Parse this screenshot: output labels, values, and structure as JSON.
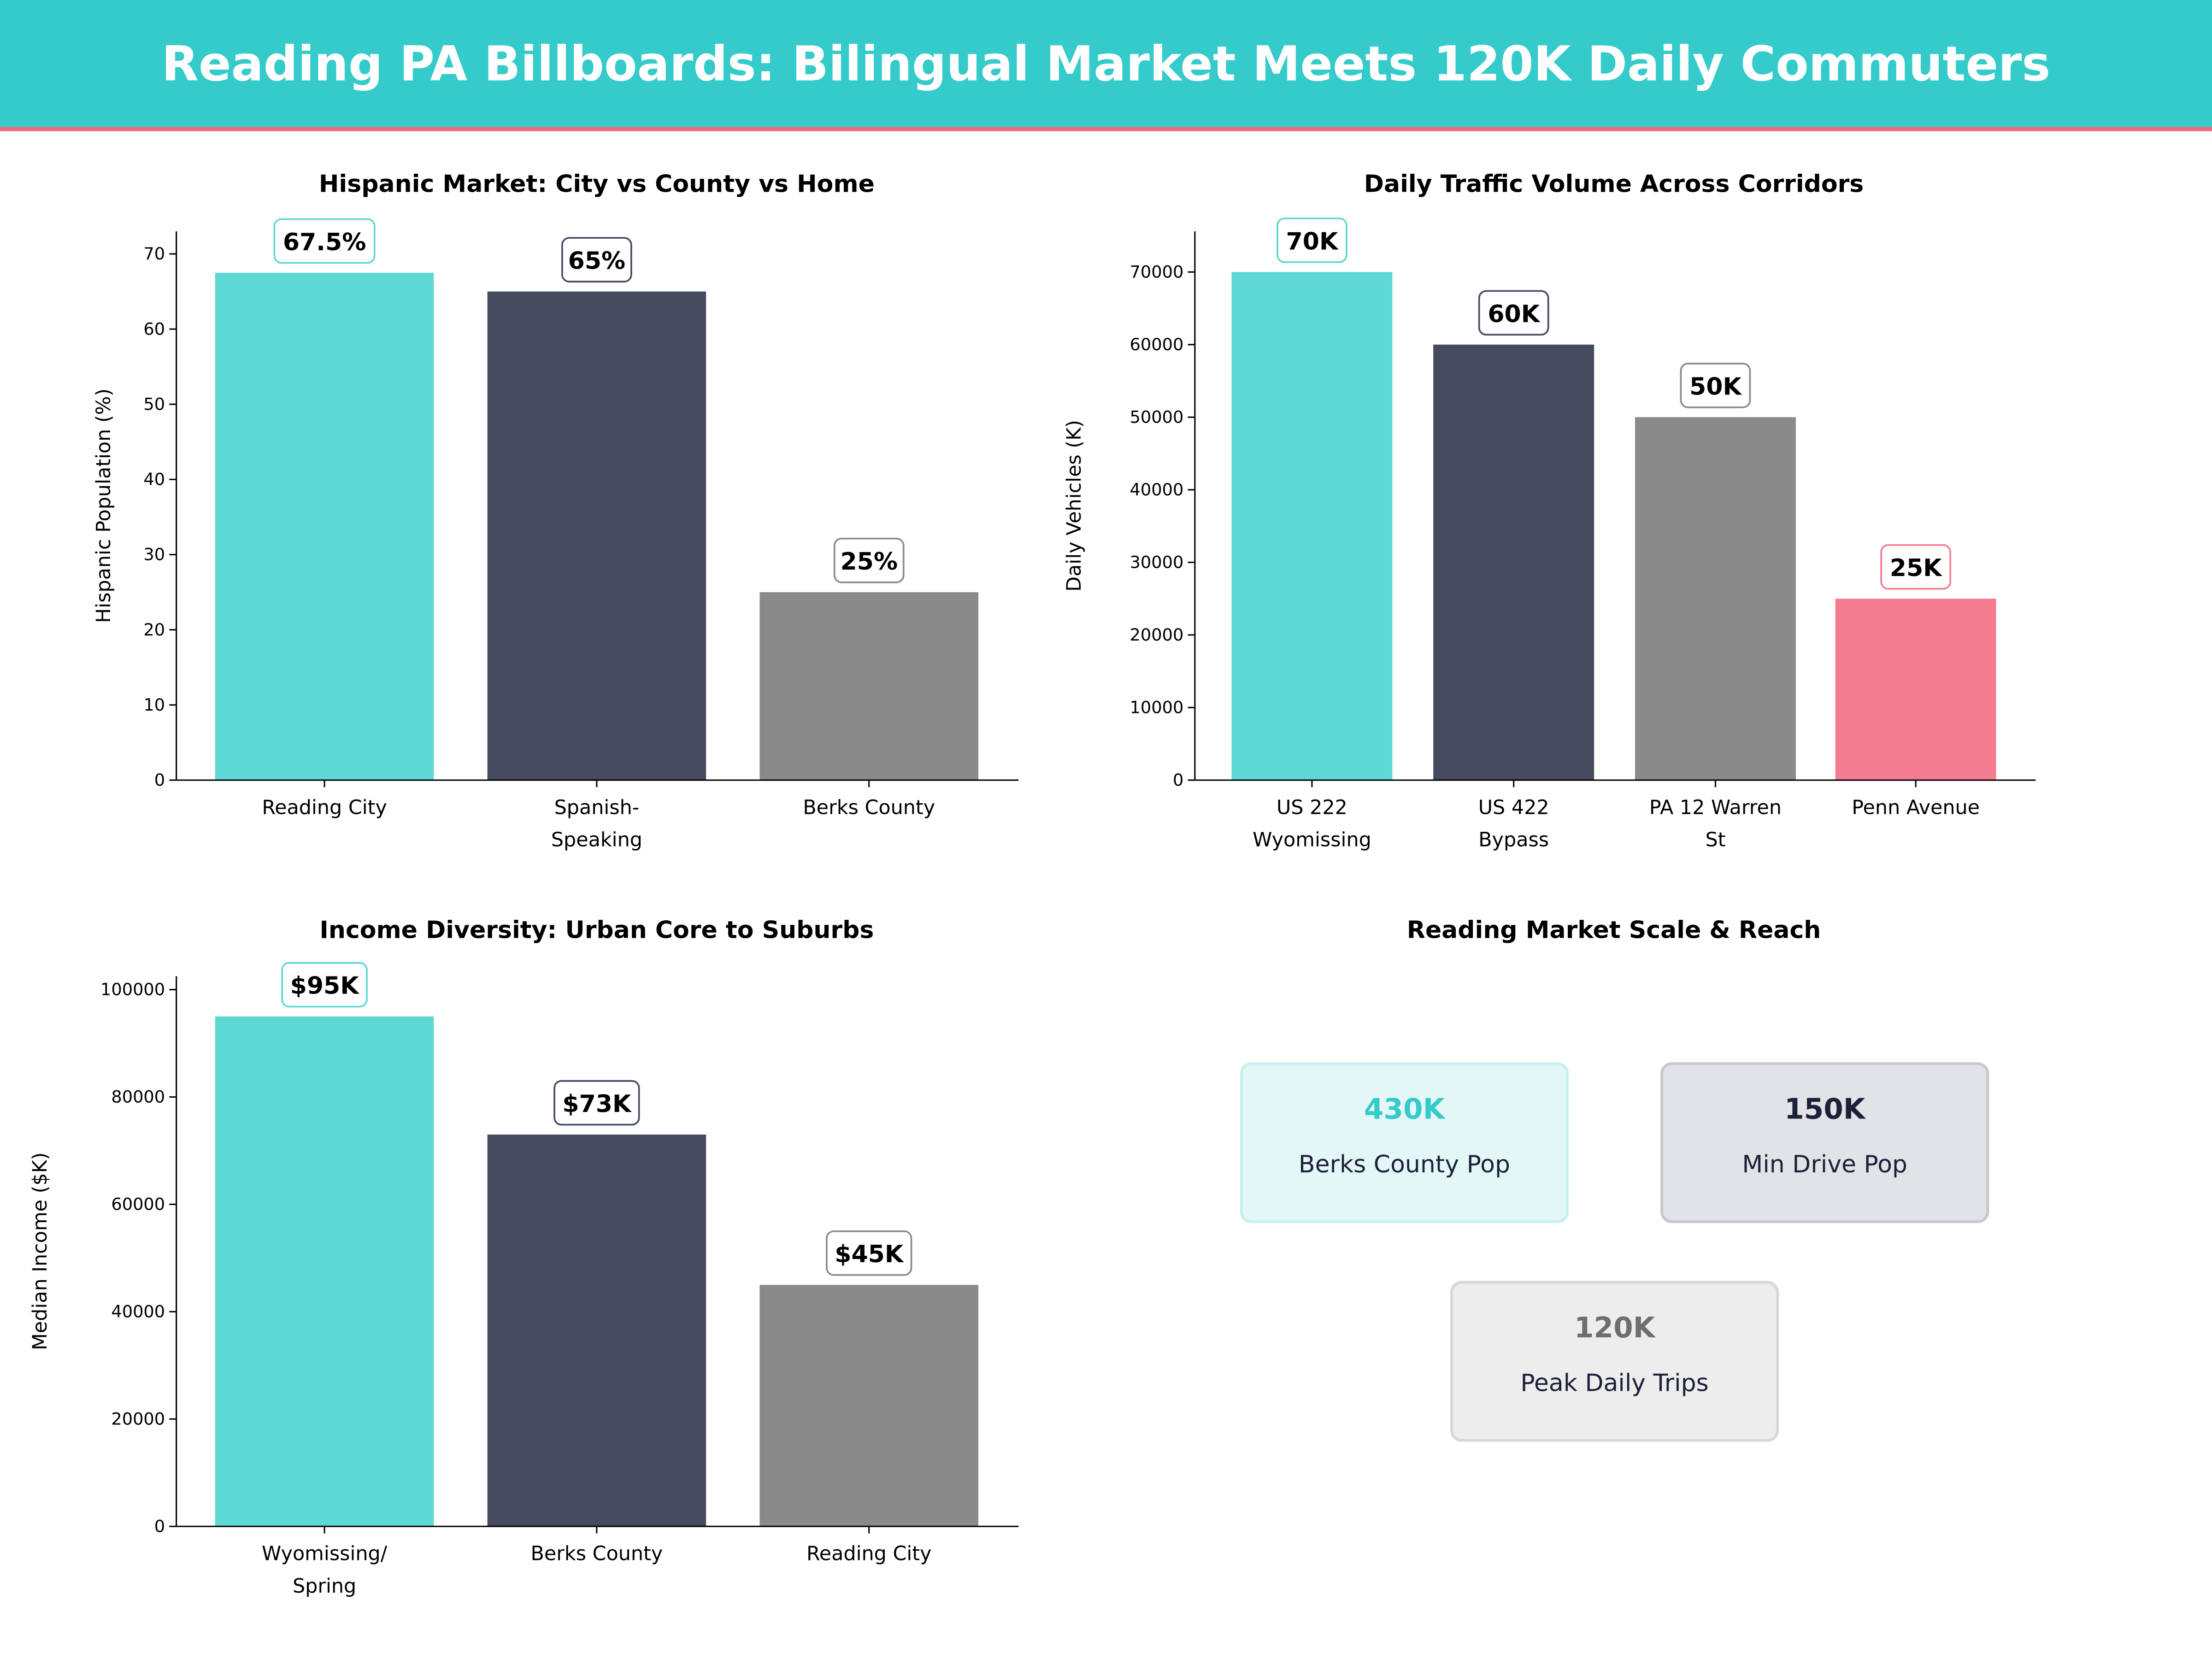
{
  "header": {
    "title": "Reading PA Billboards: Bilingual Market Meets 120K Daily Commuters",
    "bg_color": "#36CBCB",
    "accent_line_color": "#F06A7E"
  },
  "chart_data": [
    {
      "type": "bar",
      "title": "Hispanic Market: City vs County vs Home",
      "ylabel": "Hispanic Population (%)",
      "xlabel": "",
      "categories": [
        "Reading City",
        "Spanish-\nSpeaking",
        "Berks County"
      ],
      "values": [
        67.5,
        65,
        25
      ],
      "data_labels": [
        "67.5%",
        "65%",
        "25%"
      ],
      "colors": [
        "#5DD8D5",
        "#454A5F",
        "#8A8A8A"
      ],
      "ylim": [
        0,
        73
      ],
      "yticks": [
        0,
        10,
        20,
        30,
        40,
        50,
        60,
        70
      ],
      "grid": false
    },
    {
      "type": "bar",
      "title": "Daily Traffic Volume Across Corridors",
      "ylabel": "Daily Vehicles (K)",
      "xlabel": "",
      "categories": [
        "US 222\nWyomissing",
        "US 422\nBypass",
        "PA 12 Warren\nSt",
        "Penn Avenue"
      ],
      "values": [
        70000,
        60000,
        50000,
        25000
      ],
      "data_labels": [
        "70K",
        "60K",
        "50K",
        "25K"
      ],
      "colors": [
        "#5DD8D5",
        "#454A5F",
        "#8A8A8A",
        "#F47C90"
      ],
      "ylim": [
        0,
        75600
      ],
      "yticks": [
        0,
        10000,
        20000,
        30000,
        40000,
        50000,
        60000,
        70000
      ],
      "grid": false
    },
    {
      "type": "bar",
      "title": "Income Diversity: Urban Core to Suburbs",
      "ylabel": "Median Income ($K)",
      "xlabel": "",
      "categories": [
        "Wyomissing/\nSpring",
        "Berks County",
        "Reading City"
      ],
      "values": [
        95000,
        73000,
        45000
      ],
      "data_labels": [
        "$95K",
        "$73K",
        "$45K"
      ],
      "colors": [
        "#5DD8D5",
        "#454A5F",
        "#8A8A8A"
      ],
      "ylim": [
        0,
        102500
      ],
      "yticks": [
        0,
        20000,
        40000,
        60000,
        80000,
        100000
      ],
      "grid": false
    }
  ],
  "scale_panel": {
    "title": "Reading Market Scale & Reach",
    "cards": [
      {
        "value": "430K",
        "label": "Berks County Pop",
        "value_color": "#36CBCB",
        "bg": "#E4F7F7",
        "border": "#C8EFEF"
      },
      {
        "value": "150K",
        "label": "Min Drive Pop",
        "value_color": "#1C2038",
        "bg": "#E2E3E7",
        "border": "#C8C9CE"
      },
      {
        "value": "120K",
        "label": "Peak Daily Trips",
        "value_color": "#6E6E6E",
        "bg": "#EDEDED",
        "border": "#D8D8D8"
      }
    ]
  }
}
